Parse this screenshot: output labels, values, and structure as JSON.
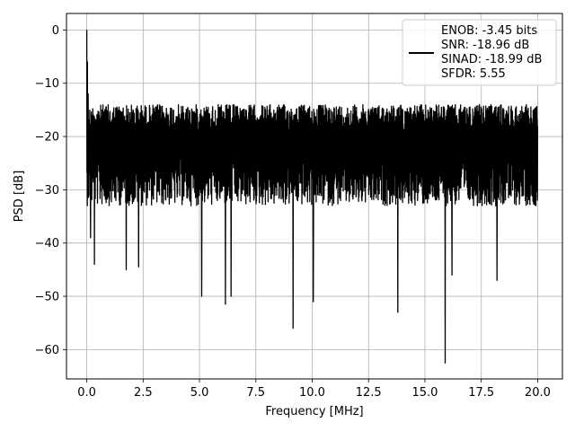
{
  "chart_data": {
    "type": "line",
    "title": "",
    "xlabel": "Frequency [MHz]",
    "ylabel": "PSD [dB]",
    "xlim": [
      -0.9,
      21.1
    ],
    "ylim": [
      -65.5,
      3.1
    ],
    "xticks": [
      0.0,
      2.5,
      5.0,
      7.5,
      10.0,
      12.5,
      15.0,
      17.5,
      20.0
    ],
    "xtick_labels": [
      "0.0",
      "2.5",
      "5.0",
      "7.5",
      "10.0",
      "12.5",
      "15.0",
      "17.5",
      "20.0"
    ],
    "yticks": [
      0,
      -10,
      -20,
      -30,
      -40,
      -50,
      -60
    ],
    "ytick_labels": [
      "0",
      "−10",
      "−20",
      "−30",
      "−40",
      "−50",
      "−60"
    ],
    "grid": true,
    "legend_position": "top-right",
    "legend": [
      "ENOB: -3.45 bits",
      "SNR: -18.96 dB",
      "SINAD: -18.99 dB",
      "SFDR: 5.55"
    ],
    "series": [
      {
        "color": "#000000",
        "x_range": [
          0,
          20
        ],
        "baseline_min": -28,
        "baseline_max": -14,
        "peaks": [
          [
            0.0,
            0
          ],
          [
            0.03,
            -6
          ],
          [
            0.06,
            -12
          ],
          [
            0.1,
            -17
          ]
        ],
        "notches": [
          [
            0.17,
            -39
          ],
          [
            0.34,
            -44
          ],
          [
            1.75,
            -45
          ],
          [
            2.3,
            -44.5
          ],
          [
            5.1,
            -50
          ],
          [
            6.15,
            -51.5
          ],
          [
            6.4,
            -50
          ],
          [
            9.15,
            -56
          ],
          [
            10.05,
            -51
          ],
          [
            13.8,
            -53
          ],
          [
            15.9,
            -62.5
          ],
          [
            16.2,
            -46
          ],
          [
            18.2,
            -47
          ]
        ]
      }
    ]
  },
  "colors": {
    "line": "#000000",
    "grid": "#b0b0b0",
    "legend_border": "#cccccc"
  }
}
